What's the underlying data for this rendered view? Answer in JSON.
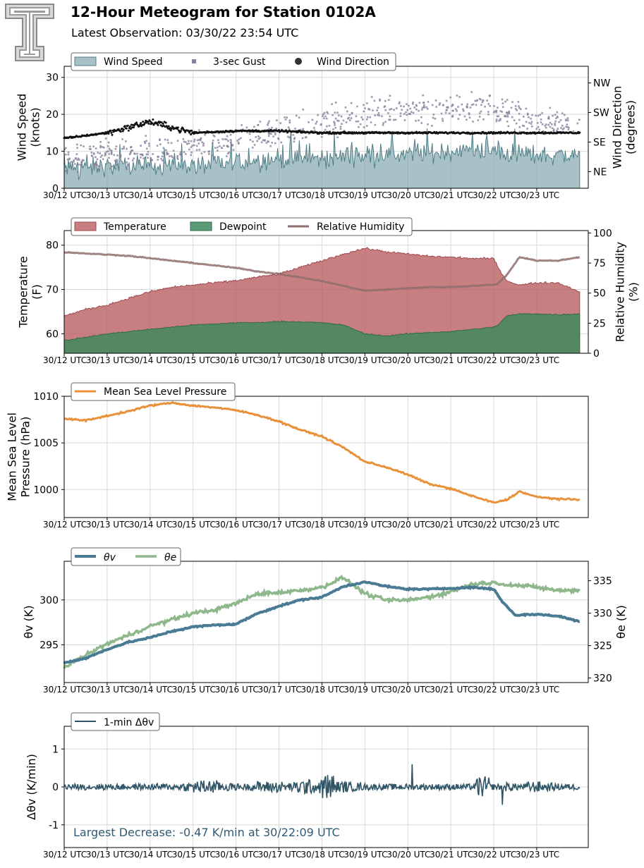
{
  "header": {
    "title": "12-Hour Meteogram for Station 0102A",
    "subtitle": "Latest Observation: 03/30/22 23:54 UTC"
  },
  "colors": {
    "wind_fill": "#7a9fa8",
    "wind_line": "#4f7f86",
    "gust": "#8a7f9c",
    "direction": "#111111",
    "temperature": "#b85b5f",
    "dewpoint": "#3f8a5e",
    "rh": "#8e6f6d",
    "pressure": "#e8913a",
    "theta_v": "#4a7b94",
    "theta_e": "#8fb78c",
    "dtheta": "#2f5566",
    "annotation": "#2f5a73"
  },
  "x_tick_labels": [
    "30/12 UTC",
    "30/13 UTC",
    "30/14 UTC",
    "30/15 UTC",
    "30/16 UTC",
    "30/17 UTC",
    "30/18 UTC",
    "30/19 UTC",
    "30/20 UTC",
    "30/21 UTC",
    "30/22 UTC",
    "30/23 UTC"
  ],
  "chart_data": [
    {
      "type": "area",
      "ylabel": "Wind Speed\n(knots)",
      "ylabel2": "Wind Direction\n(degrees)",
      "ylim": [
        0,
        33
      ],
      "yticks": [
        0,
        10,
        20,
        30
      ],
      "y2_tick_labels": [
        "NE",
        "SE",
        "SW",
        "NW"
      ],
      "legend": [
        "Wind Speed",
        "3-sec Gust",
        "Wind Direction"
      ],
      "legend_position": "top-left",
      "grid": true,
      "x_hours": [
        12,
        13,
        14,
        15,
        16,
        17,
        18,
        19,
        20,
        21,
        22,
        23,
        24
      ],
      "series": [
        {
          "name": "Wind Speed",
          "values": [
            5,
            6,
            6,
            6,
            7,
            8,
            8,
            9,
            9,
            10,
            10,
            9,
            9
          ]
        },
        {
          "name": "3-sec Gust",
          "values": [
            8,
            9,
            10,
            11,
            13,
            15,
            17,
            20,
            21,
            21,
            22,
            18,
            17
          ]
        },
        {
          "name": "Wind Direction",
          "values": [
            13.5,
            15,
            18,
            15,
            15.5,
            15.5,
            15,
            15,
            15,
            15,
            15,
            15,
            15
          ]
        }
      ]
    },
    {
      "type": "area",
      "ylabel": "Temperature\n(F)",
      "ylabel2": "Relative Humidity\n(%)",
      "ylim": [
        55.6,
        83.3
      ],
      "yticks": [
        60,
        70,
        80
      ],
      "y2lim": [
        0,
        102
      ],
      "y2ticks": [
        0,
        25,
        50,
        75,
        100
      ],
      "legend": [
        "Temperature",
        "Dewpoint",
        "Relative Humidity"
      ],
      "legend_position": "top-left",
      "grid": true,
      "x_hours": [
        12,
        12.5,
        13,
        13.5,
        14,
        14.5,
        15,
        15.5,
        16,
        16.5,
        17,
        17.5,
        18,
        18.5,
        19,
        19.5,
        20,
        20.5,
        21,
        21.5,
        22,
        22.1,
        22.3,
        22.6,
        23,
        23.5,
        24
      ],
      "series": [
        {
          "name": "Temperature",
          "values": [
            64,
            65.5,
            66.5,
            68,
            69.5,
            70.5,
            71,
            71.5,
            72,
            72.8,
            73.5,
            75,
            76.5,
            78,
            79.3,
            78.5,
            78,
            77.5,
            77.3,
            77,
            77,
            75,
            72,
            71,
            71.5,
            71.5,
            69.5
          ]
        },
        {
          "name": "Dewpoint",
          "values": [
            58.5,
            59.2,
            60,
            60.5,
            61,
            61.5,
            62,
            62.2,
            62.5,
            62.5,
            62.8,
            62.7,
            62.5,
            62,
            60,
            59.5,
            60,
            60.3,
            60.5,
            61,
            61.5,
            62,
            64,
            64.5,
            64.5,
            64.3,
            64.5
          ]
        },
        {
          "name": "Relative Humidity",
          "values": [
            84,
            83,
            82,
            81,
            79,
            77,
            75,
            73,
            71,
            68,
            66,
            63,
            60,
            56,
            52,
            53,
            54,
            55,
            55,
            56,
            57,
            58,
            65,
            80,
            77,
            77,
            80
          ]
        }
      ]
    },
    {
      "type": "line",
      "ylabel": "Mean Sea Level\nPressure (hPa)",
      "ylim": [
        997,
        1010
      ],
      "yticks": [
        1000,
        1005,
        1010
      ],
      "legend": [
        "Mean Sea Level Pressure"
      ],
      "legend_position": "top-left",
      "grid": true,
      "x_hours": [
        12,
        12.5,
        13,
        13.5,
        14,
        14.5,
        15,
        15.5,
        16,
        16.5,
        17,
        17.5,
        18,
        18.5,
        19,
        19.5,
        20,
        20.5,
        21,
        21.5,
        22,
        22.3,
        22.6,
        23,
        23.5,
        24
      ],
      "series": [
        {
          "name": "Mean Sea Level Pressure",
          "values": [
            1007.6,
            1007.4,
            1007.9,
            1008.4,
            1009,
            1009.3,
            1009,
            1008.8,
            1008.5,
            1008,
            1007.3,
            1006.4,
            1005.7,
            1004.5,
            1003,
            1002.4,
            1001.6,
            1000.6,
            1000.1,
            999.3,
            998.6,
            998.9,
            999.8,
            999.2,
            999,
            998.9
          ]
        }
      ]
    },
    {
      "type": "line",
      "ylabel": "θv (K)",
      "ylabel2": "θe (K)",
      "ylim": [
        290.8,
        304.3
      ],
      "yticks": [
        295,
        300
      ],
      "y2lim": [
        319.3,
        338
      ],
      "y2ticks": [
        320,
        325,
        330,
        335
      ],
      "legend": [
        "θv",
        "θe"
      ],
      "legend_position": "top-left",
      "grid": true,
      "x_hours": [
        12,
        12.5,
        13,
        13.5,
        14,
        14.5,
        15,
        15.5,
        16,
        16.5,
        17,
        17.5,
        18,
        18.5,
        19,
        19.5,
        20,
        20.5,
        21,
        21.5,
        22,
        22.2,
        22.5,
        23,
        23.5,
        24
      ],
      "series": [
        {
          "name": "θv",
          "values": [
            293,
            293.5,
            294.5,
            295.3,
            295.8,
            296.5,
            297,
            297.2,
            297.3,
            298.5,
            299.3,
            300,
            300.3,
            301.5,
            302,
            301.5,
            301.2,
            301.2,
            301.3,
            301.4,
            301.2,
            299.8,
            298.3,
            298.4,
            298.2,
            297.6
          ]
        },
        {
          "name": "θe",
          "values": [
            321.7,
            323.5,
            325.3,
            326.6,
            328,
            329,
            330,
            330.5,
            331.5,
            333,
            333.2,
            333.5,
            334,
            335.5,
            333,
            332,
            332,
            332.5,
            333.3,
            334.5,
            334.7,
            334.5,
            334.3,
            334,
            333.5,
            333.5
          ]
        }
      ]
    },
    {
      "type": "line",
      "ylabel": "Δθv (K/min)",
      "ylim": [
        -1.6,
        1.6
      ],
      "yticks": [
        -1,
        0,
        1
      ],
      "legend": [
        "1-min Δθv"
      ],
      "legend_position": "top-left",
      "grid": true,
      "series": [
        {
          "name": "1-min Δθv",
          "values": [
            0.02,
            -0.05,
            0.08,
            -0.1,
            0.1,
            -0.08,
            0.06,
            -0.15,
            0.12,
            -0.2,
            0.3,
            -0.3,
            0.2,
            -0.15,
            0.15,
            -0.25,
            0.25,
            -0.2,
            0.35,
            -0.3,
            0.6,
            -0.25,
            0.2,
            -0.15,
            0.12,
            -0.1,
            0.08,
            -0.12,
            0.1,
            -0.08,
            0.1,
            -0.1,
            -0.47,
            0.1,
            -0.2,
            0.15,
            -0.25,
            0.18,
            -0.15,
            0.05
          ]
        }
      ],
      "annotation": "Largest Decrease: -0.47 K/min at 30/22:09 UTC"
    }
  ]
}
